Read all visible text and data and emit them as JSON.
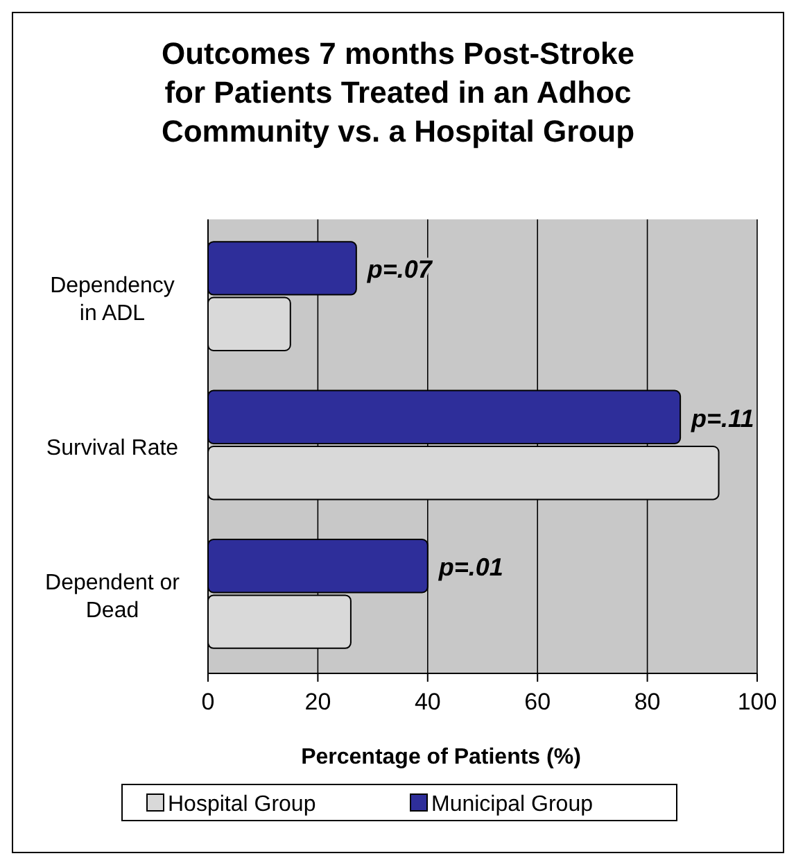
{
  "chart_data": {
    "type": "bar",
    "orientation": "horizontal",
    "title": "Outcomes 7 months Post-Stroke\nfor Patients Treated in an Adhoc\nCommunity vs. a Hospital Group",
    "xlabel": "Percentage of Patients (%)",
    "categories": [
      "Dependency\nin ADL",
      "Survival Rate",
      "Dependent or\nDead"
    ],
    "series": [
      {
        "name": "Hospital Group",
        "color": "#d9d9d9",
        "values": [
          15,
          93,
          26
        ]
      },
      {
        "name": "Municipal Group",
        "color": "#2e2e9a",
        "values": [
          27,
          86,
          40
        ]
      }
    ],
    "xlim": [
      0,
      100
    ],
    "xticks": [
      0,
      20,
      40,
      60,
      80,
      100
    ],
    "grid": "x",
    "legend": "bottom",
    "annotations": [
      {
        "text": "p=.07",
        "x": 27,
        "y": "Dependency\nin ADL"
      },
      {
        "text": "p=.11",
        "x": 86,
        "y": "Survival Rate"
      },
      {
        "text": "p=.01",
        "x": 40,
        "y": "Dependent or\nDead"
      }
    ]
  }
}
